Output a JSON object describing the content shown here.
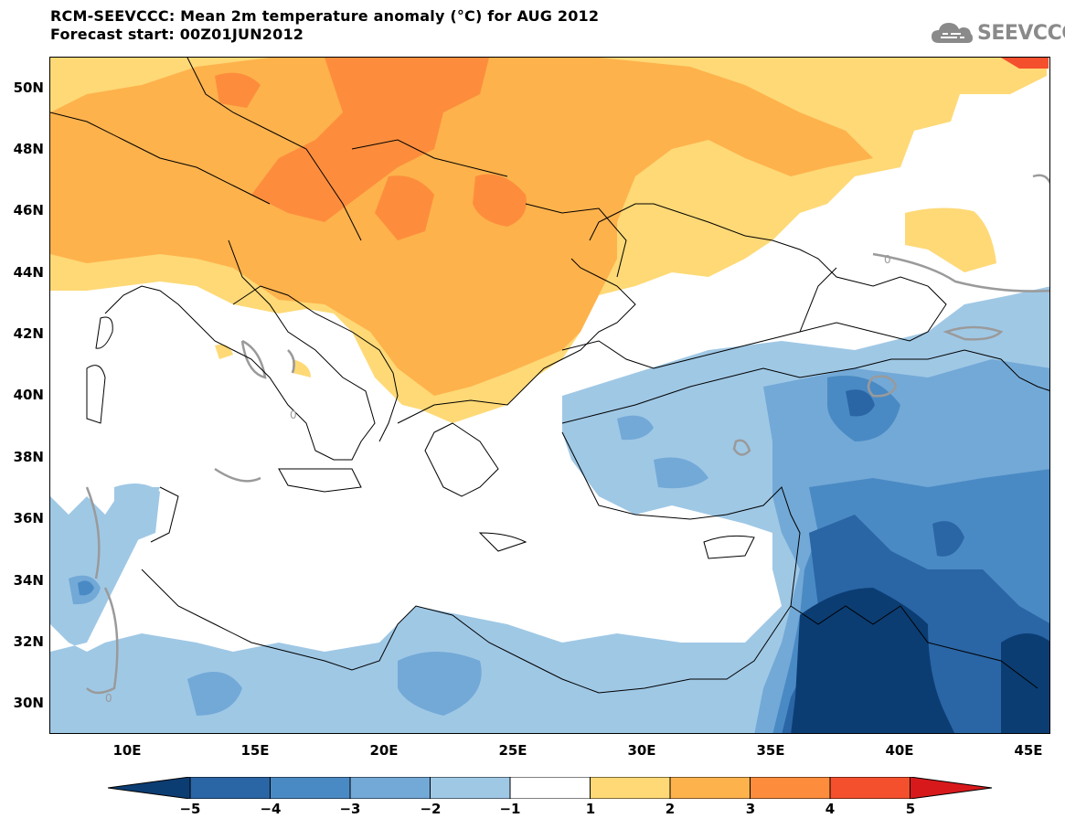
{
  "header": {
    "title_line1": "RCM-SEEVCCC: Mean 2m temperature anomaly (°C) for AUG 2012",
    "title_line2": "Forecast start: 00Z01JUN2012"
  },
  "logo": {
    "text": "SEEVCCC",
    "icon": "cloud-icon"
  },
  "map": {
    "lat_labels": [
      "50N",
      "48N",
      "46N",
      "44N",
      "42N",
      "40N",
      "38N",
      "36N",
      "34N",
      "32N",
      "30N"
    ],
    "lon_labels": [
      "10E",
      "15E",
      "20E",
      "25E",
      "30E",
      "35E",
      "40E",
      "45E"
    ],
    "contour_labels": [
      "0",
      "0",
      "0"
    ]
  },
  "colorbar": {
    "tick_labels": [
      "−5",
      "−4",
      "−3",
      "−2",
      "−1",
      "1",
      "2",
      "3",
      "4",
      "5"
    ],
    "colors": [
      "#0b3d73",
      "#2a65a5",
      "#4a8ac4",
      "#73a9d7",
      "#9fc8e5",
      "#ffffff",
      "#fed976",
      "#feb24c",
      "#fd8d3c",
      "#f5502d",
      "#d7191c"
    ]
  },
  "colors": {
    "anom_pos_1": "#fed976",
    "anom_pos_2": "#feb24c",
    "anom_pos_3": "#fd8d3c",
    "anom_pos_4": "#f5502d",
    "anom_neg_1": "#9fc8e5",
    "anom_neg_2": "#73a9d7",
    "anom_neg_3": "#4a8ac4",
    "anom_neg_4": "#2a65a5",
    "anom_neg_5": "#0b3d73",
    "zero_contour": "#9a9a9a",
    "coastline": "#000000"
  }
}
